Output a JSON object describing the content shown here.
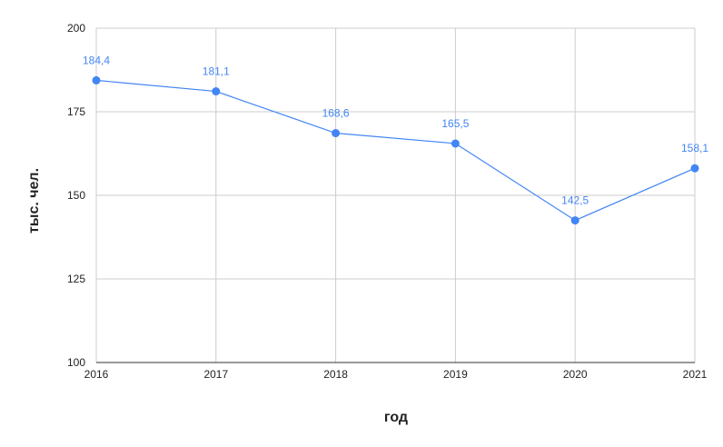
{
  "chart_data": {
    "type": "line",
    "title": "",
    "xlabel": "год",
    "ylabel": "тыс. чел.",
    "x": [
      "2016",
      "2017",
      "2018",
      "2019",
      "2020",
      "2021"
    ],
    "series": [
      {
        "values": [
          184.4,
          181.1,
          168.6,
          165.5,
          142.5,
          158.1
        ],
        "data_labels": [
          "184,4",
          "181,1",
          "168,6",
          "165,5",
          "142,5",
          "158,1"
        ],
        "color": "#4285f4"
      }
    ],
    "ylim": [
      100,
      200
    ],
    "yticks": [
      100,
      125,
      150,
      175,
      200
    ],
    "grid": true,
    "legend": "none"
  }
}
